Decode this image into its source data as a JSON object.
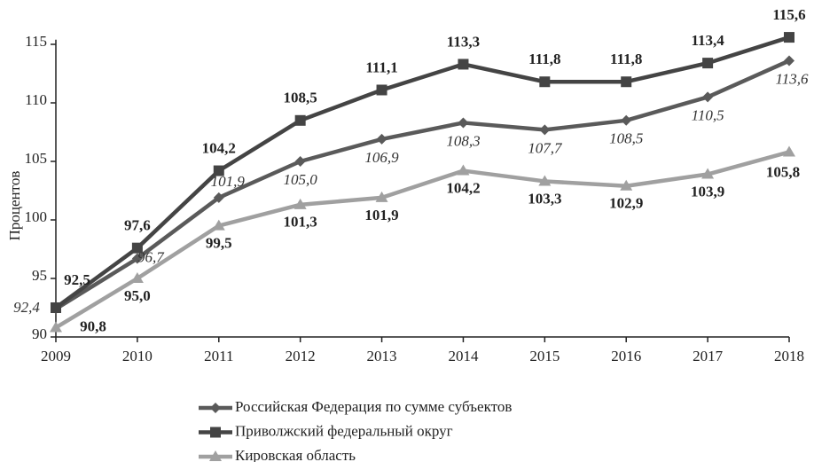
{
  "chart_data": {
    "type": "line",
    "y_label": "Процентов",
    "categories": [
      "2009",
      "2010",
      "2011",
      "2012",
      "2013",
      "2014",
      "2015",
      "2016",
      "2017",
      "2018"
    ],
    "series": [
      {
        "name": "Российская Федерация по сумме субъектов",
        "color": "#5a5a5a",
        "marker": "diamond",
        "values": [
          92.4,
          96.7,
          101.9,
          105.0,
          106.9,
          108.3,
          107.7,
          108.5,
          110.5,
          113.6
        ],
        "value_labels": [
          "92,4",
          "96,7",
          "101,9",
          "105,0",
          "106,9",
          "108,3",
          "107,7",
          "108,5",
          "110,5",
          "113,6"
        ]
      },
      {
        "name": "Приволжский федеральный округ",
        "color": "#444444",
        "marker": "square",
        "values": [
          92.5,
          97.6,
          104.2,
          108.5,
          111.1,
          113.3,
          111.8,
          111.8,
          113.4,
          115.6
        ],
        "value_labels": [
          "92,5",
          "97,6",
          "104,2",
          "108,5",
          "111,1",
          "113,3",
          "111,8",
          "111,8",
          "113,4",
          "115,6"
        ]
      },
      {
        "name": "Кировская область",
        "color": "#a0a0a0",
        "marker": "triangle",
        "values": [
          90.8,
          95.0,
          99.5,
          101.3,
          101.9,
          104.2,
          103.3,
          102.9,
          103.9,
          105.8
        ],
        "value_labels": [
          "90,8",
          "95,0",
          "99,5",
          "101,3",
          "101,9",
          "104,2",
          "103,3",
          "102,9",
          "103,9",
          "105,8"
        ]
      }
    ],
    "ylim": [
      90,
      116
    ],
    "yticks": [
      90,
      95,
      100,
      105,
      110,
      115
    ],
    "grid": false
  }
}
